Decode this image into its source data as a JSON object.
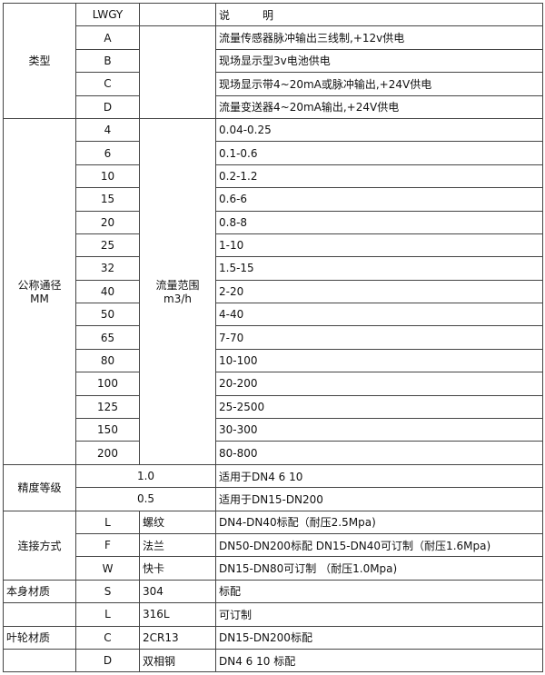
{
  "header": {
    "code": "LWGY",
    "description": "说　　　明"
  },
  "type": {
    "label": "类型",
    "rows": [
      {
        "code": "A",
        "desc": "流量传感器脉冲输出三线制,+12v供电"
      },
      {
        "code": "B",
        "desc": "现场显示型3v电池供电"
      },
      {
        "code": "C",
        "desc": "现场显示带4~20mA或脉冲输出,+24V供电"
      },
      {
        "code": "D",
        "desc": "流量变送器4~20mA输出,+24V供电"
      }
    ]
  },
  "diameter": {
    "label": "公称通径",
    "unit": "MM",
    "range_label": "流量范围",
    "range_unit": "m3/h",
    "rows": [
      {
        "dn": "4",
        "range": "0.04-0.25"
      },
      {
        "dn": "6",
        "range": "0.1-0.6"
      },
      {
        "dn": "10",
        "range": "0.2-1.2"
      },
      {
        "dn": "15",
        "range": "0.6-6"
      },
      {
        "dn": "20",
        "range": "0.8-8"
      },
      {
        "dn": "25",
        "range": "1-10"
      },
      {
        "dn": "32",
        "range": "1.5-15"
      },
      {
        "dn": "40",
        "range": "2-20"
      },
      {
        "dn": "50",
        "range": "4-40"
      },
      {
        "dn": "65",
        "range": "7-70"
      },
      {
        "dn": "80",
        "range": "10-100"
      },
      {
        "dn": "100",
        "range": "20-200"
      },
      {
        "dn": "125",
        "range": "25-2500"
      },
      {
        "dn": "150",
        "range": "30-300"
      },
      {
        "dn": "200",
        "range": "80-800"
      }
    ]
  },
  "accuracy": {
    "label": "精度等级",
    "rows": [
      {
        "grade": "1.0",
        "desc": "适用于DN4  6  10"
      },
      {
        "grade": "0.5",
        "desc": "适用于DN15-DN200"
      }
    ]
  },
  "connection": {
    "label": "连接方式",
    "rows": [
      {
        "code": "L",
        "name": "螺纹",
        "desc": "DN4-DN40标配（耐压2.5Mpa)"
      },
      {
        "code": "F",
        "name": "法兰",
        "desc": "DN50-DN200标配 DN15-DN40可订制（耐压1.6Mpa)"
      },
      {
        "code": "W",
        "name": "快卡",
        "desc": "DN15-DN80可订制 （耐压1.0Mpa)"
      }
    ]
  },
  "body_material": {
    "label": "本身材质",
    "rows": [
      {
        "code": "S",
        "name": "304",
        "desc": "标配"
      },
      {
        "code": "L",
        "name": "316L",
        "desc": "可订制"
      }
    ]
  },
  "impeller_material": {
    "label": "叶轮材质",
    "rows": [
      {
        "code": "C",
        "name": "2CR13",
        "desc": "DN15-DN200标配"
      },
      {
        "code": "D",
        "name": "双相钢",
        "desc": "DN4 6 10 标配"
      }
    ]
  }
}
